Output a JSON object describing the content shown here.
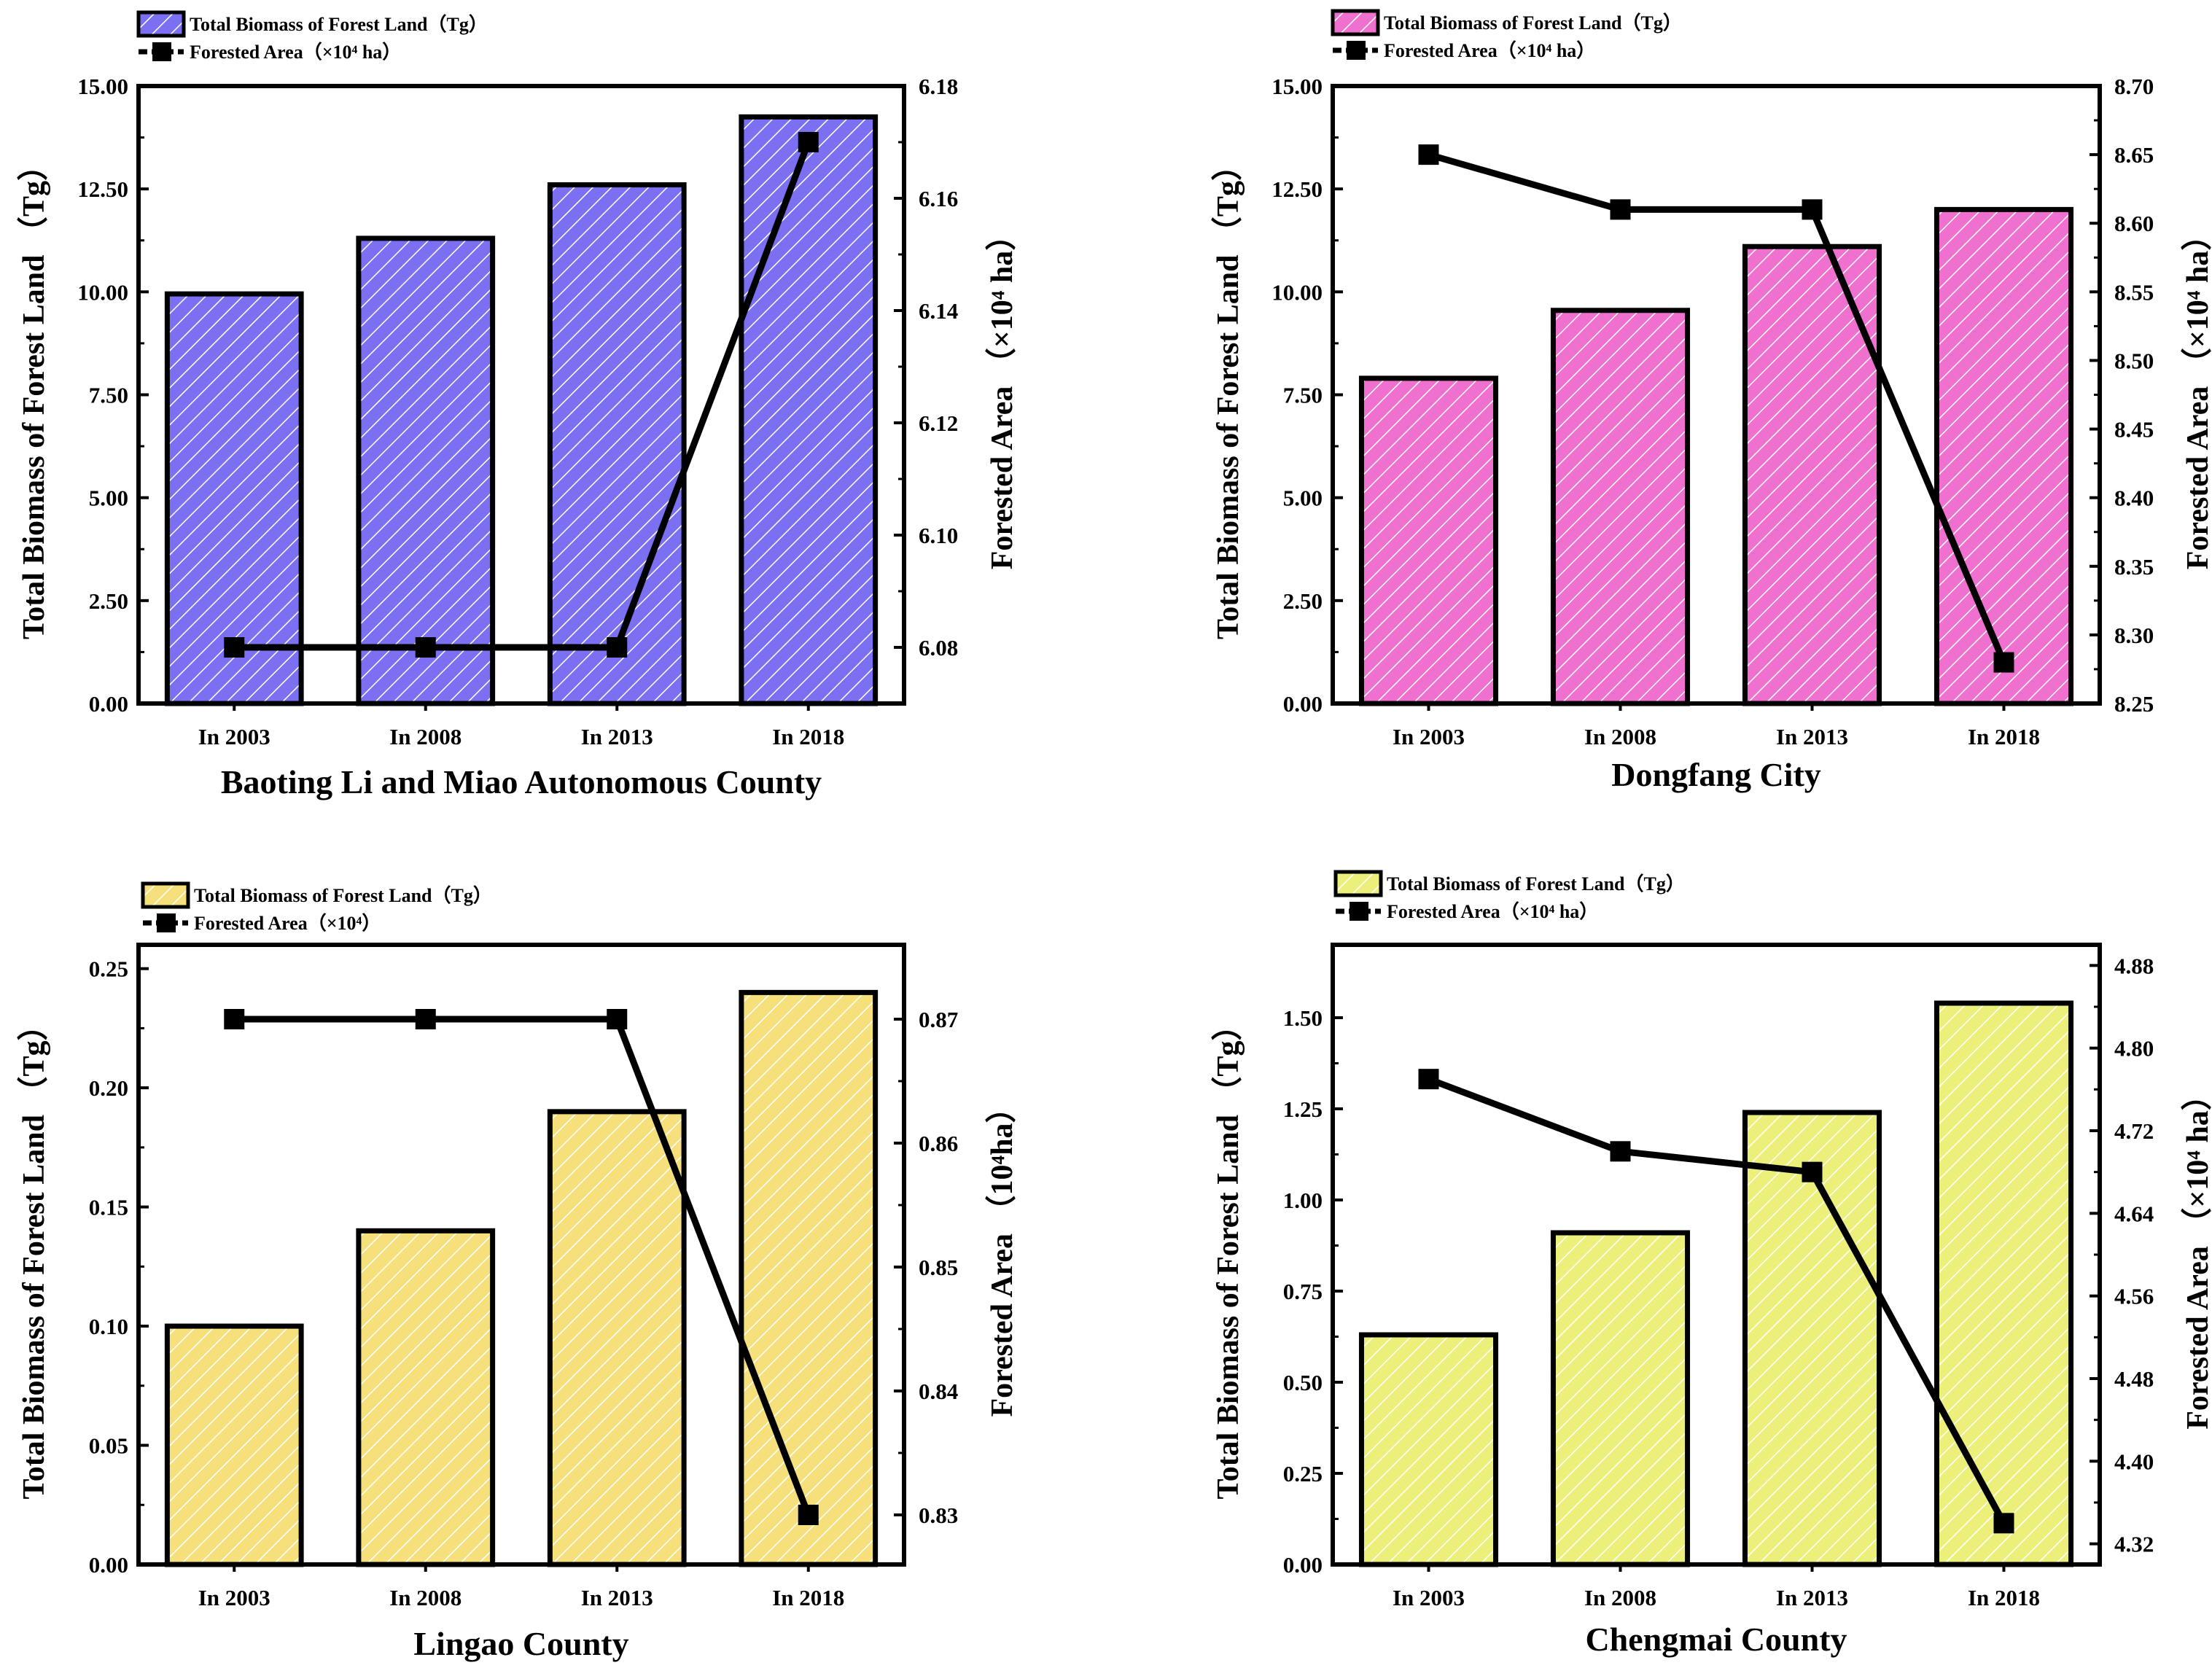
{
  "chart_data": [
    {
      "type": "bar",
      "title": "Baoting Li and Miao Autonomous County",
      "categories": [
        "In 2003",
        "In 2008",
        "In 2013",
        "In 2018"
      ],
      "ylabel": "Total Biomass of Forest Land （Tg）",
      "y2label": "Forested Area （×10⁴ ha）",
      "ylim": [
        0,
        15
      ],
      "yticks": [
        "0.00",
        "2.50",
        "5.00",
        "7.50",
        "10.00",
        "12.50",
        "15.00"
      ],
      "y2lim": [
        6.07,
        6.18
      ],
      "y2ticks": [
        "6.08",
        "6.10",
        "6.12",
        "6.14",
        "6.16",
        "6.18"
      ],
      "series": [
        {
          "name": "Total Biomass of Forest Land（Tg）",
          "kind": "bar",
          "values": [
            9.95,
            11.3,
            12.6,
            14.25
          ]
        },
        {
          "name": "Forested Area（×10⁴ ha）",
          "kind": "line",
          "values": [
            6.08,
            6.08,
            6.08,
            6.17
          ]
        }
      ],
      "legend": [
        "Total Biomass of Forest Land（Tg）",
        "Forested Area（×10⁴ ha）"
      ],
      "bar_color": "#7b6ff2"
    },
    {
      "type": "bar",
      "title": "Dongfang City",
      "categories": [
        "In 2003",
        "In 2008",
        "In 2013",
        "In 2018"
      ],
      "ylabel": "Total Biomass of Forest Land （Tg）",
      "y2label": "Forested Area （×10⁴ ha）",
      "ylim": [
        0,
        15
      ],
      "yticks": [
        "0.00",
        "2.50",
        "5.00",
        "7.50",
        "10.00",
        "12.50",
        "15.00"
      ],
      "y2lim": [
        8.25,
        8.7
      ],
      "y2ticks": [
        "8.25",
        "8.30",
        "8.35",
        "8.40",
        "8.45",
        "8.50",
        "8.55",
        "8.60",
        "8.65",
        "8.70"
      ],
      "series": [
        {
          "name": "Total Biomass of Forest Land（Tg）",
          "kind": "bar",
          "values": [
            7.9,
            9.55,
            11.1,
            12.0
          ]
        },
        {
          "name": "Forested Area（×10⁴ ha）",
          "kind": "line",
          "values": [
            8.65,
            8.61,
            8.61,
            8.28
          ]
        }
      ],
      "legend": [
        "Total Biomass of Forest Land（Tg）",
        "Forested Area（×10⁴ ha）"
      ],
      "bar_color": "#f070cf"
    },
    {
      "type": "bar",
      "title": "Lingao County",
      "categories": [
        "In 2003",
        "In 2008",
        "In 2013",
        "In 2018"
      ],
      "ylabel": "Total Biomass of Forest Land （Tg）",
      "y2label": "Forested Area （10⁴ha）",
      "ylim": [
        0,
        0.26
      ],
      "yticks": [
        "0.00",
        "0.05",
        "0.10",
        "0.15",
        "0.20",
        "0.25"
      ],
      "y2lim": [
        0.826,
        0.876
      ],
      "y2ticks": [
        "0.83",
        "0.84",
        "0.85",
        "0.86",
        "0.87"
      ],
      "series": [
        {
          "name": "Total Biomass of Forest Land（Tg）",
          "kind": "bar",
          "values": [
            0.1,
            0.14,
            0.19,
            0.24
          ]
        },
        {
          "name": "Forested Area（×10⁴）",
          "kind": "line",
          "values": [
            0.87,
            0.87,
            0.87,
            0.83
          ]
        }
      ],
      "legend": [
        "Total Biomass of Forest Land（Tg）",
        "Forested Area（×10⁴）"
      ],
      "bar_color": "#f5e07c"
    },
    {
      "type": "bar",
      "title": "Chengmai County",
      "categories": [
        "In 2003",
        "In 2008",
        "In 2013",
        "In 2018"
      ],
      "ylabel": "Total Biomass of Forest Land （Tg）",
      "y2label": "Forested Area （×10⁴ ha）",
      "ylim": [
        0,
        1.7
      ],
      "yticks": [
        "0.00",
        "0.25",
        "0.50",
        "0.75",
        "1.00",
        "1.25",
        "1.50"
      ],
      "y2lim": [
        4.3,
        4.9
      ],
      "y2ticks": [
        "4.32",
        "4.40",
        "4.48",
        "4.56",
        "4.64",
        "4.72",
        "4.80",
        "4.88"
      ],
      "series": [
        {
          "name": "Total Biomass of Forest Land（Tg）",
          "kind": "bar",
          "values": [
            0.63,
            0.91,
            1.24,
            1.54
          ]
        },
        {
          "name": "Forested Area（×10⁴ ha）",
          "kind": "line",
          "values": [
            4.77,
            4.7,
            4.68,
            4.34
          ]
        }
      ],
      "legend": [
        "Total Biomass of Forest Land（Tg）",
        "Forested Area（×10⁴ ha）"
      ],
      "bar_color": "#ecf07a"
    }
  ]
}
